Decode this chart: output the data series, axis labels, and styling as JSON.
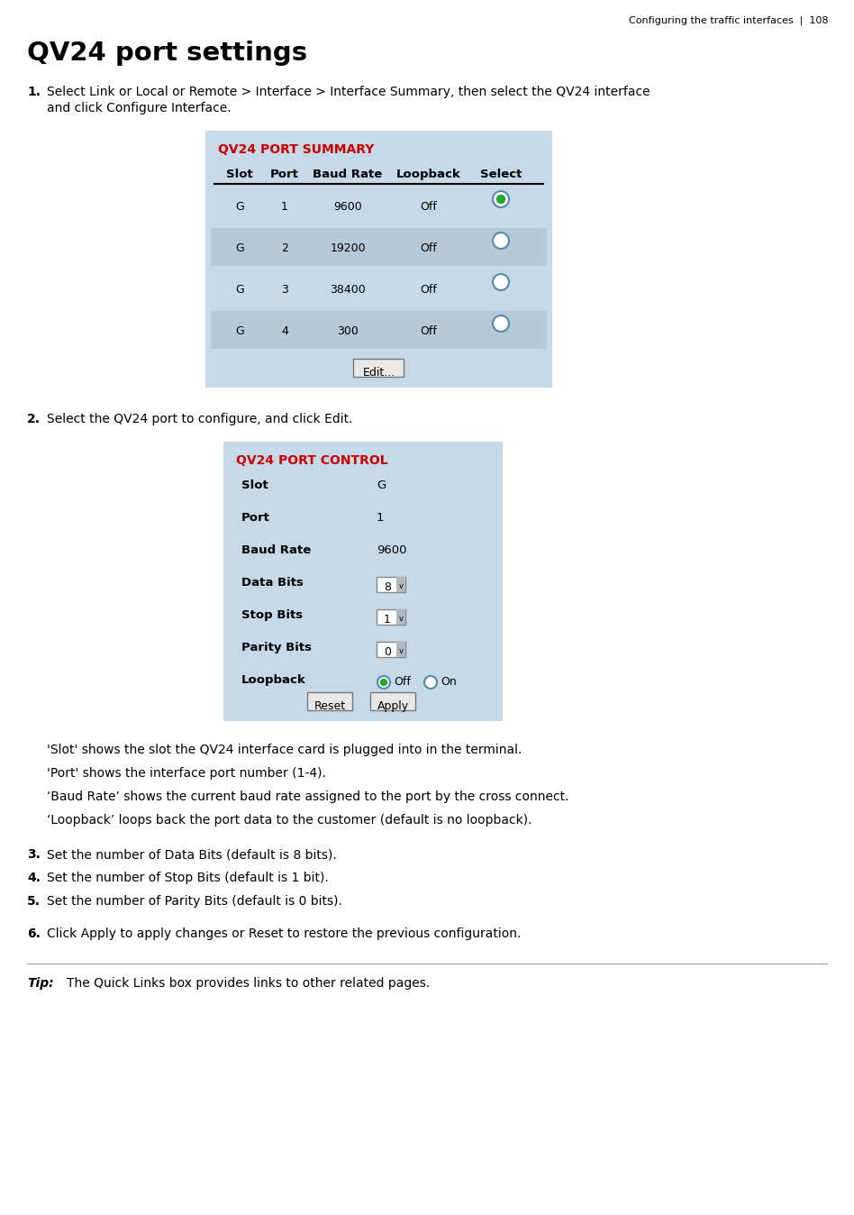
{
  "header_text": "Configuring the traffic interfaces  |  108",
  "title": "QV24 port settings",
  "step1_text_line1": "Select Link or Local or Remote > Interface > Interface Summary, then select the QV24 interface",
  "step1_text_line2": "and click Configure Interface.",
  "step2_text": "Select the QV24 port to configure, and click Edit.",
  "panel1_title": "QV24 PORT SUMMARY",
  "panel1_bg": "#c5d9e8",
  "panel1_title_color": "#cc0000",
  "table_headers": [
    "Slot",
    "Port",
    "Baud Rate",
    "Loopback",
    "Select"
  ],
  "table_rows": [
    [
      "G",
      "1",
      "9600",
      "Off"
    ],
    [
      "G",
      "2",
      "19200",
      "Off"
    ],
    [
      "G",
      "3",
      "38400",
      "Off"
    ],
    [
      "G",
      "4",
      "300",
      "Off"
    ]
  ],
  "row_alt_color": "#b5c9d8",
  "panel2_title": "QV24 PORT CONTROL",
  "panel2_title_color": "#cc0000",
  "panel2_bg": "#c5d9e8",
  "panel2_fields": [
    [
      "Slot",
      "G",
      false
    ],
    [
      "Port",
      "1",
      false
    ],
    [
      "Baud Rate",
      "9600",
      false
    ],
    [
      "Data Bits",
      "8",
      true
    ],
    [
      "Stop Bits",
      "1",
      true
    ],
    [
      "Parity Bits",
      "0",
      true
    ],
    [
      "Loopback",
      "",
      false
    ]
  ],
  "descriptions": [
    "'Slot' shows the slot the QV24 interface card is plugged into in the terminal.",
    "'Port' shows the interface port number (1-4).",
    "‘Baud Rate’ shows the current baud rate assigned to the port by the cross connect.",
    "‘Loopback’ loops back the port data to the customer (default is no loopback)."
  ],
  "step3_text": "Set the number of Data Bits (default is 8 bits).",
  "step4_text": "Set the number of Stop Bits (default is 1 bit).",
  "step5_text": "Set the number of Parity Bits (default is 0 bits).",
  "step6_text": "Click Apply to apply changes or Reset to restore the previous configuration.",
  "tip_label": "Tip:",
  "tip_text": "The Quick Links box provides links to other related pages.",
  "white": "#ffffff",
  "black": "#000000"
}
